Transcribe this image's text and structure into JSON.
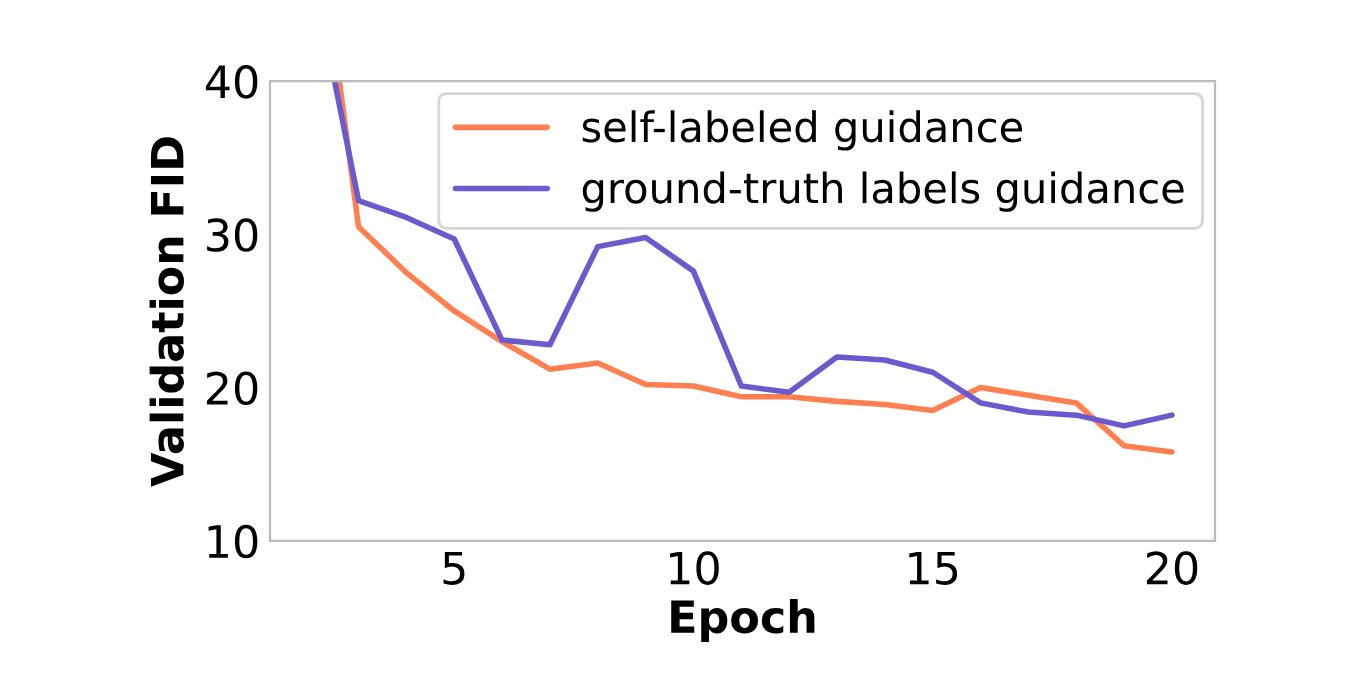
{
  "chart_data": {
    "type": "line",
    "xlabel": "Epoch",
    "ylabel": "Validation FID",
    "series": [
      {
        "name": "self-labeled guidance",
        "color": "#ff7f50",
        "x": [
          2.6,
          3,
          4,
          5,
          6,
          7,
          8,
          9,
          10,
          11,
          12,
          13,
          14,
          15,
          16,
          17,
          18,
          19,
          20
        ],
        "values": [
          40,
          30.5,
          27.5,
          25.0,
          23.0,
          21.2,
          21.6,
          20.2,
          20.1,
          19.4,
          19.4,
          19.1,
          18.9,
          18.5,
          20.0,
          19.5,
          19.0,
          16.2,
          15.8
        ]
      },
      {
        "name": "ground-truth labels guidance",
        "color": "#6a5acd",
        "x": [
          2.5,
          3,
          4,
          5,
          6,
          7,
          8,
          9,
          10,
          11,
          12,
          13,
          14,
          15,
          16,
          17,
          18,
          19,
          20
        ],
        "values": [
          40,
          32.2,
          31.1,
          29.7,
          23.1,
          22.8,
          29.2,
          29.8,
          27.6,
          20.1,
          19.7,
          22.0,
          21.8,
          21.0,
          19.0,
          18.4,
          18.2,
          17.5,
          18.2
        ]
      }
    ],
    "xlim": [
      1.15,
      20.9
    ],
    "ylim": [
      10,
      40
    ],
    "xticks": [
      5,
      10,
      15,
      20
    ],
    "yticks": [
      10,
      20,
      30,
      40
    ],
    "grid": false,
    "legend": "top right"
  }
}
